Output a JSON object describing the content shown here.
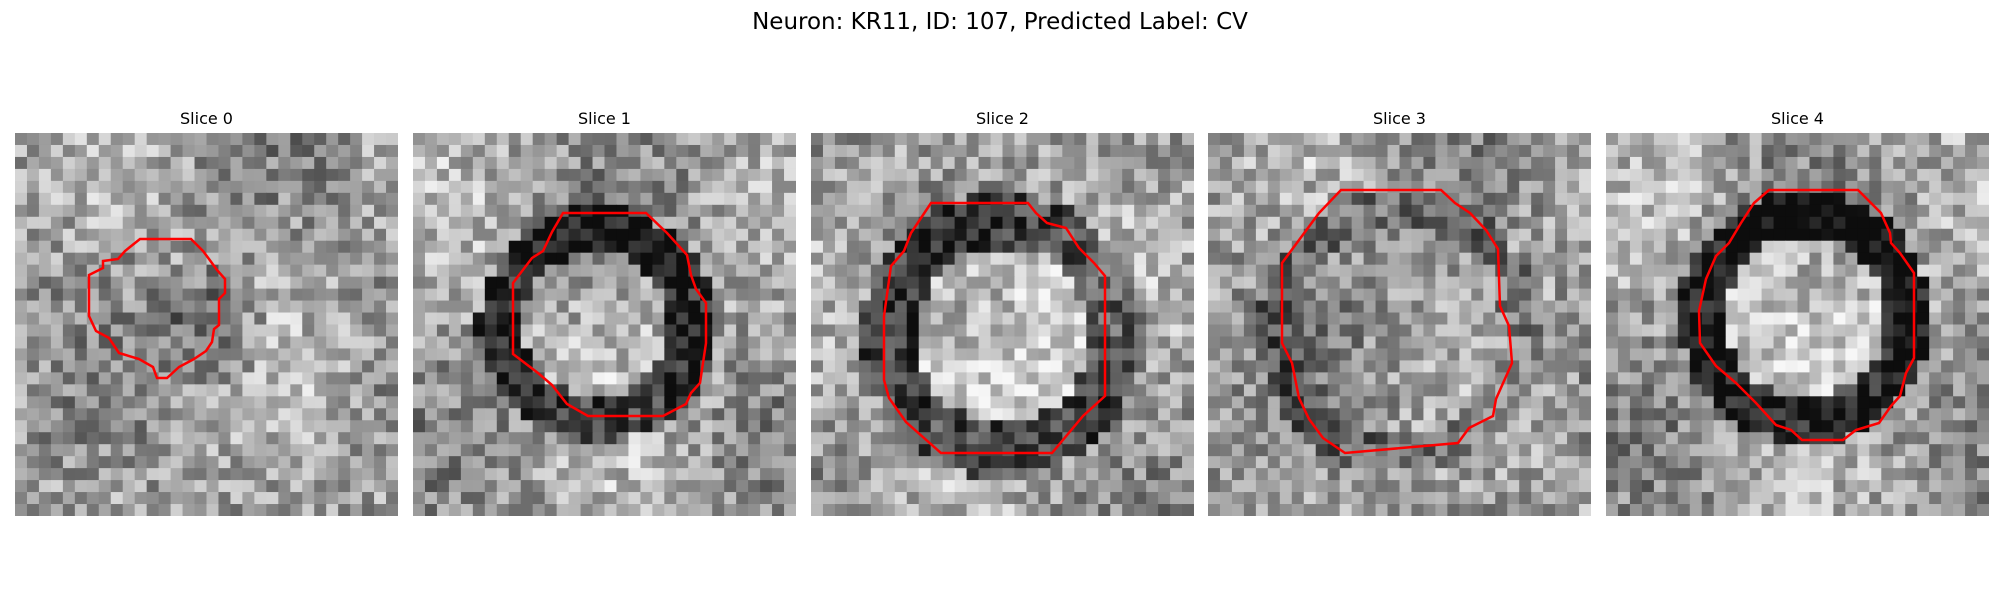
{
  "figure": {
    "title": "Neuron: KR11, ID: 107, Predicted Label: CV"
  },
  "panels": [
    {
      "title": "Slice 0",
      "seed": 11,
      "contour_color": "#ff0000"
    },
    {
      "title": "Slice 1",
      "seed": 23,
      "contour_color": "#ff0000"
    },
    {
      "title": "Slice 2",
      "seed": 37,
      "contour_color": "#ff0000"
    },
    {
      "title": "Slice 3",
      "seed": 53,
      "contour_color": "#ff0000"
    },
    {
      "title": "Slice 4",
      "seed": 71,
      "contour_color": "#ff0000"
    }
  ]
}
